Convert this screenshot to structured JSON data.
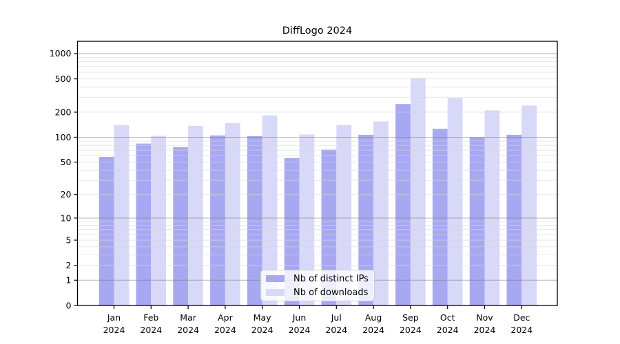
{
  "figure": {
    "title": "DiffLogo 2024"
  },
  "chart_data": {
    "type": "bar",
    "title": "DiffLogo 2024",
    "subtitle": "",
    "categories": [
      "Jan 2024",
      "Feb 2024",
      "Mar 2024",
      "Apr 2024",
      "May 2024",
      "Jun 2024",
      "Jul 2024",
      "Aug 2024",
      "Sep 2024",
      "Oct 2024",
      "Nov 2024",
      "Dec 2024"
    ],
    "category_months": [
      "Jan",
      "Feb",
      "Mar",
      "Apr",
      "May",
      "Jun",
      "Jul",
      "Aug",
      "Sep",
      "Oct",
      "Nov",
      "Dec"
    ],
    "category_year": "2024",
    "series": [
      {
        "name": "Nb of distinct IPs",
        "color": "#a8a8f2",
        "values": [
          58,
          84,
          76,
          105,
          103,
          56,
          71,
          107,
          250,
          126,
          100,
          107
        ]
      },
      {
        "name": "Nb of downloads",
        "color": "#d8d8f9",
        "values": [
          140,
          104,
          137,
          148,
          183,
          108,
          140,
          155,
          512,
          295,
          210,
          240
        ]
      }
    ],
    "xlabel": "",
    "ylabel": "",
    "y_axis": {
      "scale": "log10(1+x)",
      "ticks": [
        0,
        1,
        2,
        5,
        10,
        20,
        50,
        100,
        200,
        500,
        1000
      ],
      "tick_labels": [
        "0",
        "1",
        "2",
        "5",
        "10",
        "20",
        "50",
        "100",
        "200",
        "500",
        "1000"
      ],
      "range": [
        0,
        1400
      ],
      "major_gridlines": [
        1,
        10,
        100,
        1000
      ],
      "grid": "on"
    },
    "legend_position": "lower center",
    "colors": {
      "bar_dark": "#a8a8f2",
      "bar_light": "#d8d8f9",
      "major_grid": "rgba(120,120,120,0.55)",
      "minor_grid": "rgba(215,215,215,0.6)",
      "axis": "#000000",
      "legend_border": "#cccccc",
      "legend_bg": "rgba(255,255,255,0.8)"
    }
  }
}
